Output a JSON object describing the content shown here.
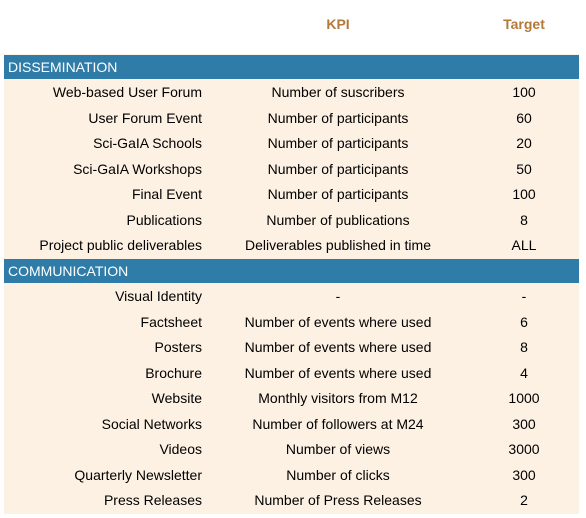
{
  "header": {
    "kpi": "KPI",
    "target": "Target"
  },
  "sections": [
    {
      "title": "DISSEMINATION",
      "rows": [
        {
          "name": "Web-based User Forum",
          "kpi": "Number of suscribers",
          "target": "100"
        },
        {
          "name": "User Forum Event",
          "kpi": "Number of participants",
          "target": "60"
        },
        {
          "name": "Sci-GaIA Schools",
          "kpi": "Number of participants",
          "target": "20"
        },
        {
          "name": "Sci-GaIA Workshops",
          "kpi": "Number of participants",
          "target": "50"
        },
        {
          "name": "Final Event",
          "kpi": "Number of participants",
          "target": "100"
        },
        {
          "name": "Publications",
          "kpi": "Number of publications",
          "target": "8"
        },
        {
          "name": "Project public deliverables",
          "kpi": "Deliverables published in time",
          "target": "ALL"
        }
      ]
    },
    {
      "title": "COMMUNICATION",
      "rows": [
        {
          "name": "Visual Identity",
          "kpi": "-",
          "target": "-"
        },
        {
          "name": "Factsheet",
          "kpi": "Number of events where used",
          "target": "6"
        },
        {
          "name": "Posters",
          "kpi": "Number of events where used",
          "target": "8"
        },
        {
          "name": "Brochure",
          "kpi": "Number of events where used",
          "target": "4"
        },
        {
          "name": "Website",
          "kpi": "Monthly visitors from M12",
          "target": "1000"
        },
        {
          "name": "Social Networks",
          "kpi": "Number of followers at M24",
          "target": "300"
        },
        {
          "name": "Videos",
          "kpi": "Number of views",
          "target": "3000"
        },
        {
          "name": "Quarterly Newsletter",
          "kpi": "Number of clicks",
          "target": "300"
        },
        {
          "name": "Press Releases",
          "kpi": "Number of Press Releases",
          "target": "2"
        }
      ]
    }
  ]
}
